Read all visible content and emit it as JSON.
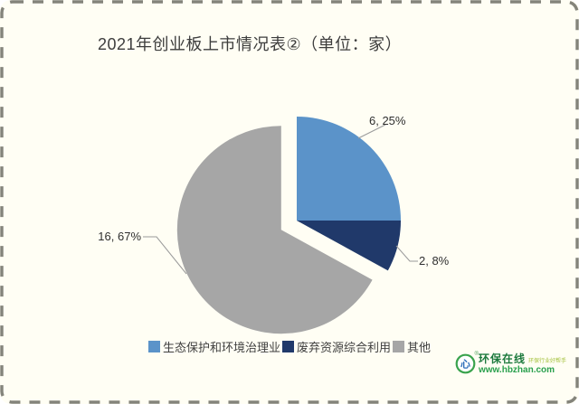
{
  "chart_data": {
    "type": "pie",
    "title": "2021年创业板上市情况表②（单位：家）",
    "unit": "家",
    "start_angle_deg_from_top": 0,
    "direction": "clockwise",
    "legend_position": "bottom",
    "background_color": "#FFFEF4",
    "slices": [
      {
        "label": "生态保护和环境治理业",
        "value": 6,
        "percent": 25,
        "color": "#5B93C9",
        "data_label": "6, 25%",
        "exploded": false
      },
      {
        "label": "废弃资源综合利用",
        "value": 2,
        "percent": 8,
        "color": "#20396A",
        "data_label": "2, 8%",
        "exploded": false
      },
      {
        "label": "其他",
        "value": 16,
        "percent": 67,
        "color": "#A6A6A6",
        "data_label": "16, 67%",
        "exploded": true
      }
    ]
  },
  "watermark": {
    "brand": "环保在线",
    "registered_mark": "®",
    "slogan": "环保行业好帮手",
    "url": "www.hbzhan.com",
    "brand_color": "#1d7a3e",
    "icon": "heart-in-green-ring-logo"
  }
}
